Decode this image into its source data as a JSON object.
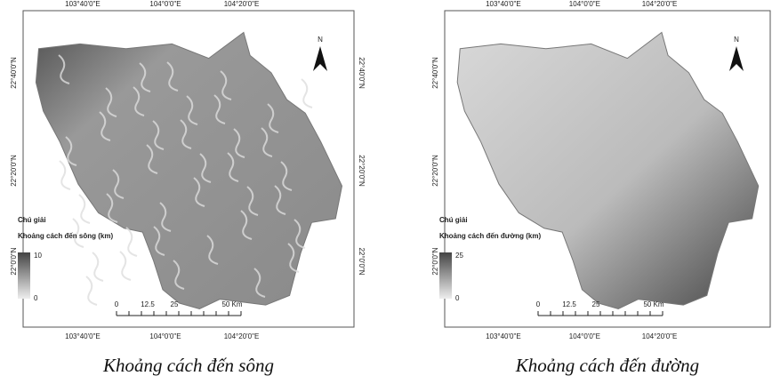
{
  "panels": [
    {
      "top_labels": [
        "103°40'0\"E",
        "104°0'0\"E",
        "104°20'0\"E"
      ],
      "bottom_labels": [
        "103°40'0\"E",
        "104°0'0\"E",
        "104°20'0\"E"
      ],
      "left_labels": [
        "22°40'0\"N",
        "22°20'0\"N",
        "22°0'0\"N"
      ],
      "right_labels": [
        "22°40'0\"N",
        "22°20'0\"N",
        "22°0'0\"N"
      ],
      "north": "N",
      "legend": {
        "title": "Chú giải",
        "subtitle": "Khoảng cách đến sông (km)",
        "max": 10,
        "min": 0
      },
      "scale": [
        "0",
        "12.5",
        "25",
        "50 Km"
      ],
      "caption": "Khoảng cách đến sông"
    },
    {
      "top_labels": [
        "103°40'0\"E",
        "104°0'0\"E",
        "104°20'0\"E"
      ],
      "bottom_labels": [
        "103°40'0\"E",
        "104°0'0\"E",
        "104°20'0\"E"
      ],
      "left_labels": [
        "22°40'0\"N",
        "22°20'0\"N",
        "22°0'0\"N"
      ],
      "north": "N",
      "legend": {
        "title": "Chú giải",
        "subtitle": "Khoảng cách đến đường (km)",
        "max": 25,
        "min": 0
      },
      "scale": [
        "0",
        "12.5",
        "25",
        "50 Km"
      ],
      "caption": "Khoảng cách đến đường"
    }
  ]
}
